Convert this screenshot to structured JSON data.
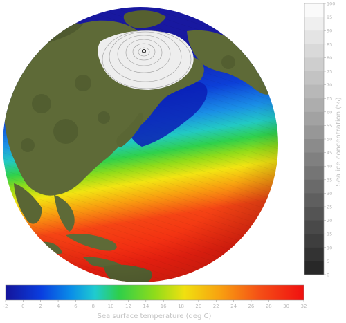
{
  "colors": {
    "ocean_stops": [
      "#1a1aa8",
      "#0a6ee0",
      "#1fc1d6",
      "#2ecf4a",
      "#8fdc1a",
      "#f0e010",
      "#f89010",
      "#f22010"
    ],
    "land": "#5e6a37",
    "land_dark": "#4a5530",
    "ice": "#eeeeee"
  },
  "sst_legend": {
    "title": "Sea surface temperature (deg C)",
    "min": -2,
    "max": 32,
    "ticks": [
      "-2",
      "0",
      "2",
      "4",
      "6",
      "8",
      "10",
      "12",
      "14",
      "16",
      "18",
      "20",
      "22",
      "24",
      "26",
      "28",
      "30",
      "32"
    ]
  },
  "ice_legend": {
    "title": "Sea ice concentration (%)",
    "min": 0,
    "max": 100,
    "ticks": [
      "100",
      "95",
      "90",
      "85",
      "80",
      "75",
      "70",
      "65",
      "60",
      "55",
      "50",
      "45",
      "40",
      "35",
      "30",
      "25",
      "20",
      "15",
      "10",
      "5",
      "0"
    ]
  }
}
